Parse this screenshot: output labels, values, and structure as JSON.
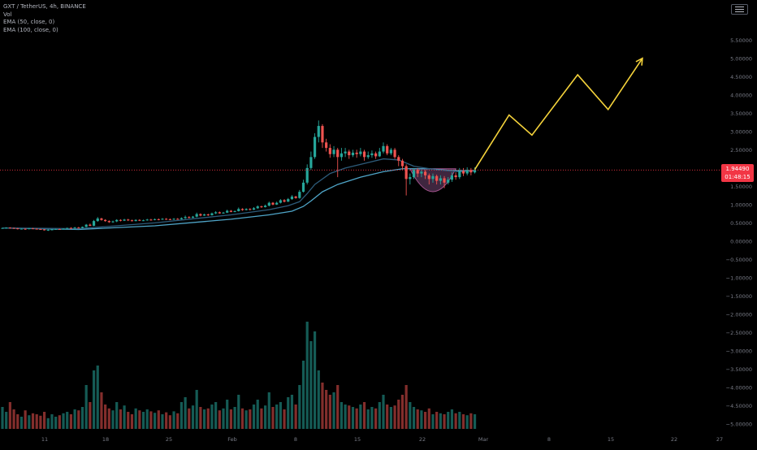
{
  "legend": {
    "symbol": "GXT / TetherUS, 4h, BINANCE",
    "volume": "Vol",
    "ema50": "EMA (50, close, 0)",
    "ema100": "EMA (100, close, 0)"
  },
  "price_tag": {
    "price": "1.94490",
    "countdown": "01:48:15"
  },
  "colors": {
    "background": "#000000",
    "up": "#26a69a",
    "down": "#ef5350",
    "ema50": "#2d5b7a",
    "ema100": "#4fa5c8",
    "projection": "#f5d33b",
    "price_line": "#f23645",
    "highlight_fill": "#4a2d4a",
    "axis_text": "#787b86"
  },
  "chart_data": {
    "type": "candlestick",
    "price_axis_ticks": [
      "5.50000",
      "5.00000",
      "4.50000",
      "4.00000",
      "3.50000",
      "3.00000",
      "2.50000",
      "2.00000",
      "1.50000",
      "1.00000",
      "0.50000",
      "0.00000",
      "−0.50000",
      "−1.00000",
      "−1.50000",
      "−2.00000",
      "−2.50000",
      "−3.00000",
      "−3.50000",
      "−4.00000",
      "−4.50000",
      "−5.00000"
    ],
    "time_axis_ticks": [
      "11",
      "18",
      "25",
      "Feb",
      "8",
      "15",
      "22",
      "Mar",
      "8",
      "15",
      "22",
      "27"
    ],
    "ylim": [
      -5.2,
      6.15
    ],
    "price_x_range": [
      0,
      124
    ],
    "current_price": 1.9449,
    "candles": [
      [
        0.35,
        0.36,
        0.34,
        0.37
      ],
      [
        0.36,
        0.37,
        0.34,
        0.38
      ],
      [
        0.37,
        0.36,
        0.35,
        0.38
      ],
      [
        0.36,
        0.35,
        0.34,
        0.37
      ],
      [
        0.35,
        0.33,
        0.32,
        0.36
      ],
      [
        0.33,
        0.34,
        0.32,
        0.35
      ],
      [
        0.34,
        0.33,
        0.31,
        0.35
      ],
      [
        0.33,
        0.35,
        0.32,
        0.36
      ],
      [
        0.35,
        0.34,
        0.33,
        0.36
      ],
      [
        0.34,
        0.33,
        0.32,
        0.35
      ],
      [
        0.33,
        0.32,
        0.31,
        0.34
      ],
      [
        0.32,
        0.3,
        0.29,
        0.33
      ],
      [
        0.3,
        0.31,
        0.28,
        0.32
      ],
      [
        0.31,
        0.32,
        0.3,
        0.33
      ],
      [
        0.32,
        0.33,
        0.31,
        0.34
      ],
      [
        0.33,
        0.32,
        0.31,
        0.34
      ],
      [
        0.32,
        0.34,
        0.31,
        0.35
      ],
      [
        0.34,
        0.36,
        0.33,
        0.37
      ],
      [
        0.36,
        0.35,
        0.34,
        0.38
      ],
      [
        0.35,
        0.37,
        0.34,
        0.39
      ],
      [
        0.37,
        0.36,
        0.35,
        0.39
      ],
      [
        0.36,
        0.39,
        0.35,
        0.4
      ],
      [
        0.39,
        0.45,
        0.38,
        0.47
      ],
      [
        0.45,
        0.42,
        0.41,
        0.48
      ],
      [
        0.42,
        0.55,
        0.41,
        0.58
      ],
      [
        0.55,
        0.62,
        0.53,
        0.66
      ],
      [
        0.62,
        0.58,
        0.56,
        0.64
      ],
      [
        0.58,
        0.55,
        0.53,
        0.6
      ],
      [
        0.55,
        0.52,
        0.5,
        0.57
      ],
      [
        0.52,
        0.54,
        0.5,
        0.56
      ],
      [
        0.54,
        0.58,
        0.52,
        0.6
      ],
      [
        0.58,
        0.56,
        0.54,
        0.6
      ],
      [
        0.56,
        0.59,
        0.55,
        0.61
      ],
      [
        0.59,
        0.57,
        0.55,
        0.61
      ],
      [
        0.57,
        0.55,
        0.54,
        0.59
      ],
      [
        0.55,
        0.58,
        0.54,
        0.6
      ],
      [
        0.58,
        0.56,
        0.55,
        0.6
      ],
      [
        0.56,
        0.57,
        0.55,
        0.59
      ],
      [
        0.57,
        0.59,
        0.56,
        0.61
      ],
      [
        0.59,
        0.58,
        0.56,
        0.61
      ],
      [
        0.58,
        0.6,
        0.57,
        0.62
      ],
      [
        0.6,
        0.59,
        0.57,
        0.62
      ],
      [
        0.59,
        0.61,
        0.58,
        0.63
      ],
      [
        0.61,
        0.6,
        0.58,
        0.63
      ],
      [
        0.6,
        0.59,
        0.58,
        0.62
      ],
      [
        0.59,
        0.61,
        0.58,
        0.63
      ],
      [
        0.61,
        0.6,
        0.59,
        0.63
      ],
      [
        0.6,
        0.63,
        0.59,
        0.65
      ],
      [
        0.63,
        0.66,
        0.61,
        0.7
      ],
      [
        0.66,
        0.64,
        0.62,
        0.68
      ],
      [
        0.64,
        0.67,
        0.63,
        0.69
      ],
      [
        0.67,
        0.74,
        0.65,
        0.78
      ],
      [
        0.74,
        0.7,
        0.68,
        0.76
      ],
      [
        0.7,
        0.73,
        0.69,
        0.75
      ],
      [
        0.73,
        0.71,
        0.69,
        0.75
      ],
      [
        0.71,
        0.76,
        0.7,
        0.78
      ],
      [
        0.76,
        0.79,
        0.74,
        0.82
      ],
      [
        0.79,
        0.76,
        0.75,
        0.81
      ],
      [
        0.76,
        0.78,
        0.75,
        0.8
      ],
      [
        0.78,
        0.83,
        0.77,
        0.86
      ],
      [
        0.83,
        0.8,
        0.79,
        0.85
      ],
      [
        0.8,
        0.82,
        0.79,
        0.84
      ],
      [
        0.82,
        0.88,
        0.81,
        0.92
      ],
      [
        0.88,
        0.85,
        0.83,
        0.9
      ],
      [
        0.85,
        0.88,
        0.84,
        0.9
      ],
      [
        0.88,
        0.86,
        0.84,
        0.9
      ],
      [
        0.86,
        0.9,
        0.85,
        0.93
      ],
      [
        0.9,
        0.95,
        0.88,
        0.98
      ],
      [
        0.95,
        0.93,
        0.91,
        0.97
      ],
      [
        0.93,
        0.97,
        0.92,
        1.0
      ],
      [
        0.97,
        1.05,
        0.95,
        1.08
      ],
      [
        1.05,
        1.0,
        0.98,
        1.07
      ],
      [
        1.0,
        1.05,
        0.99,
        1.08
      ],
      [
        1.05,
        1.12,
        1.03,
        1.15
      ],
      [
        1.12,
        1.08,
        1.06,
        1.15
      ],
      [
        1.08,
        1.15,
        1.07,
        1.18
      ],
      [
        1.15,
        1.22,
        1.13,
        1.26
      ],
      [
        1.22,
        1.18,
        1.16,
        1.24
      ],
      [
        1.18,
        1.35,
        1.16,
        1.4
      ],
      [
        1.35,
        1.6,
        1.33,
        1.68
      ],
      [
        1.6,
        2.0,
        1.55,
        2.1
      ],
      [
        2.0,
        2.3,
        1.95,
        2.45
      ],
      [
        2.3,
        2.85,
        2.25,
        2.95
      ],
      [
        2.85,
        3.15,
        2.7,
        3.3
      ],
      [
        3.15,
        2.7,
        2.55,
        3.2
      ],
      [
        2.7,
        2.55,
        2.45,
        2.8
      ],
      [
        2.55,
        2.38,
        2.28,
        2.65
      ],
      [
        2.38,
        2.5,
        2.3,
        2.6
      ],
      [
        2.5,
        2.3,
        1.75,
        2.55
      ],
      [
        2.3,
        2.4,
        2.2,
        2.55
      ],
      [
        2.4,
        2.45,
        2.3,
        2.55
      ],
      [
        2.45,
        2.35,
        2.25,
        2.5
      ],
      [
        2.35,
        2.42,
        2.3,
        2.5
      ],
      [
        2.42,
        2.38,
        2.28,
        2.5
      ],
      [
        2.38,
        2.45,
        2.32,
        2.55
      ],
      [
        2.45,
        2.3,
        2.2,
        2.5
      ],
      [
        2.3,
        2.35,
        2.25,
        2.45
      ],
      [
        2.35,
        2.4,
        2.28,
        2.48
      ],
      [
        2.4,
        2.32,
        2.25,
        2.45
      ],
      [
        2.32,
        2.45,
        2.3,
        2.55
      ],
      [
        2.45,
        2.6,
        2.4,
        2.7
      ],
      [
        2.6,
        2.4,
        2.35,
        2.65
      ],
      [
        2.4,
        2.5,
        2.35,
        2.55
      ],
      [
        2.5,
        2.3,
        2.25,
        2.55
      ],
      [
        2.3,
        2.2,
        2.05,
        2.35
      ],
      [
        2.2,
        2.05,
        1.95,
        2.25
      ],
      [
        2.05,
        1.7,
        1.25,
        2.1
      ],
      [
        1.7,
        1.75,
        1.55,
        1.85
      ],
      [
        1.75,
        1.95,
        1.7,
        2.0
      ],
      [
        1.95,
        1.85,
        1.75,
        2.0
      ],
      [
        1.85,
        1.9,
        1.75,
        1.95
      ],
      [
        1.9,
        1.8,
        1.7,
        1.95
      ],
      [
        1.8,
        1.7,
        1.55,
        1.85
      ],
      [
        1.7,
        1.78,
        1.6,
        1.85
      ],
      [
        1.78,
        1.65,
        1.55,
        1.82
      ],
      [
        1.65,
        1.72,
        1.55,
        1.8
      ],
      [
        1.72,
        1.6,
        1.45,
        1.78
      ],
      [
        1.6,
        1.68,
        1.55,
        1.75
      ],
      [
        1.68,
        1.8,
        1.62,
        1.88
      ],
      [
        1.8,
        1.75,
        1.68,
        1.88
      ],
      [
        1.75,
        1.92,
        1.7,
        2.0
      ],
      [
        1.92,
        1.85,
        1.78,
        2.0
      ],
      [
        1.85,
        1.95,
        1.8,
        2.02
      ],
      [
        1.95,
        1.88,
        1.8,
        2.0
      ],
      [
        1.88,
        1.9449,
        1.85,
        2.02
      ]
    ],
    "volumes": [
      0.45,
      0.35,
      0.55,
      0.4,
      0.3,
      0.25,
      0.38,
      0.28,
      0.32,
      0.3,
      0.27,
      0.35,
      0.22,
      0.3,
      0.25,
      0.28,
      0.32,
      0.35,
      0.3,
      0.4,
      0.38,
      0.45,
      0.9,
      0.55,
      1.2,
      1.3,
      0.75,
      0.5,
      0.42,
      0.38,
      0.55,
      0.4,
      0.48,
      0.35,
      0.3,
      0.42,
      0.38,
      0.35,
      0.4,
      0.36,
      0.33,
      0.38,
      0.3,
      0.34,
      0.28,
      0.36,
      0.32,
      0.55,
      0.65,
      0.42,
      0.48,
      0.8,
      0.45,
      0.4,
      0.42,
      0.5,
      0.55,
      0.38,
      0.42,
      0.6,
      0.4,
      0.45,
      0.7,
      0.42,
      0.38,
      0.4,
      0.5,
      0.6,
      0.42,
      0.48,
      0.75,
      0.45,
      0.5,
      0.55,
      0.4,
      0.65,
      0.7,
      0.5,
      0.9,
      1.4,
      2.2,
      1.8,
      2.0,
      1.2,
      0.95,
      0.8,
      0.7,
      0.75,
      0.9,
      0.55,
      0.5,
      0.48,
      0.45,
      0.42,
      0.5,
      0.55,
      0.4,
      0.45,
      0.42,
      0.55,
      0.7,
      0.5,
      0.45,
      0.48,
      0.6,
      0.7,
      0.9,
      0.55,
      0.45,
      0.4,
      0.38,
      0.35,
      0.42,
      0.3,
      0.35,
      0.32,
      0.3,
      0.35,
      0.4,
      0.32,
      0.35,
      0.3,
      0.28,
      0.32,
      0.3
    ],
    "ema50": [
      [
        0,
        0.36
      ],
      [
        20,
        0.34
      ],
      [
        40,
        0.5
      ],
      [
        60,
        0.72
      ],
      [
        70,
        0.86
      ],
      [
        75,
        0.97
      ],
      [
        78,
        1.08
      ],
      [
        80,
        1.3
      ],
      [
        82,
        1.55
      ],
      [
        86,
        1.85
      ],
      [
        90,
        2.0
      ],
      [
        96,
        2.15
      ],
      [
        100,
        2.25
      ],
      [
        104,
        2.22
      ],
      [
        108,
        2.05
      ],
      [
        114,
        1.95
      ],
      [
        120,
        1.9
      ],
      [
        124,
        1.92
      ]
    ],
    "ema100": [
      [
        0,
        0.36
      ],
      [
        20,
        0.32
      ],
      [
        40,
        0.42
      ],
      [
        60,
        0.6
      ],
      [
        70,
        0.72
      ],
      [
        76,
        0.82
      ],
      [
        79,
        0.95
      ],
      [
        81,
        1.1
      ],
      [
        84,
        1.35
      ],
      [
        88,
        1.55
      ],
      [
        94,
        1.75
      ],
      [
        100,
        1.9
      ],
      [
        105,
        1.98
      ],
      [
        112,
        1.98
      ],
      [
        118,
        1.93
      ],
      [
        124,
        1.93
      ]
    ],
    "projection": [
      [
        124,
        1.96
      ],
      [
        133,
        3.45
      ],
      [
        139,
        2.9
      ],
      [
        151,
        4.55
      ],
      [
        159,
        3.6
      ],
      [
        168,
        5.0
      ]
    ],
    "highlight_arc": {
      "x_range": [
        107,
        119
      ],
      "y_top": 1.98,
      "y_bottom": 1.32
    }
  }
}
